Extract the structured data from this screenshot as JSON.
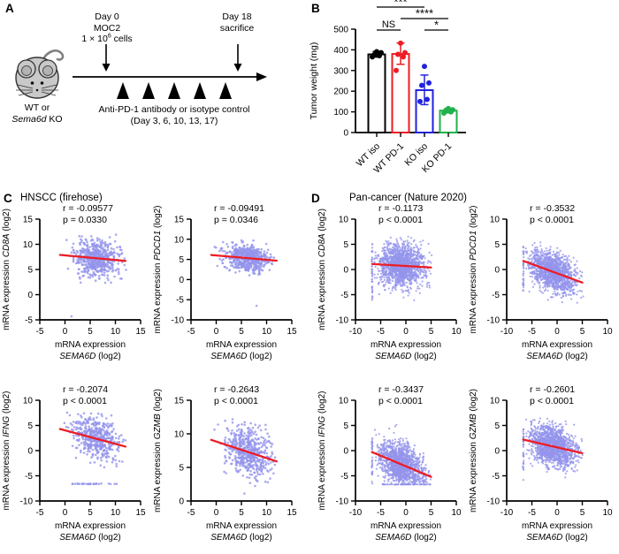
{
  "colors": {
    "point": "#9393ec",
    "trend": "#ed1c24",
    "axis": "#000000",
    "mouse_body": "#c9c9c9",
    "mouse_inner": "#b3b3b3"
  },
  "panel_labels": {
    "a": "A",
    "b": "B",
    "c": "C",
    "d": "D"
  },
  "panel_a": {
    "day0_line1": "Day 0",
    "day0_line2": "MOC2",
    "cells_pre": "1 × 10",
    "cells_sup": "6",
    "cells_post": " cells",
    "day18_line1": "Day 18",
    "day18_line2": "sacrifice",
    "genotype_line1": "WT or",
    "genotype_italic": "Sema6d",
    "genotype_post": " KO",
    "treatment_line1": "Anti-PD-1 antibody or isotype control",
    "treatment_line2": "(Day 3, 6, 10, 13, 17)"
  },
  "panel_c_title": "HNSCC (firehose)",
  "panel_d_title": "Pan-cancer (Nature 2020)",
  "chart_data": [
    {
      "id": "B",
      "type": "bar",
      "title": "",
      "ylabel": "Tumor weight (mg)",
      "ylim": [
        0,
        500
      ],
      "yticks": [
        0,
        100,
        200,
        300,
        400,
        500
      ],
      "categories": [
        "WT iso",
        "WT PD-1",
        "KO iso",
        "KO PD-1"
      ],
      "bar_colors": [
        "#000000",
        "#ed1c24",
        "#2222dd",
        "#22b14c"
      ],
      "means": [
        378,
        380,
        205,
        106
      ],
      "error_low": [
        365,
        330,
        135,
        95
      ],
      "error_high": [
        392,
        433,
        278,
        117
      ],
      "points": [
        [
          366,
          372,
          376,
          386,
          391
        ],
        [
          300,
          366,
          378,
          386,
          432
        ],
        [
          150,
          160,
          228,
          240,
          320
        ],
        [
          94,
          100,
          106,
          110,
          116
        ]
      ],
      "significance": [
        {
          "label": "***",
          "from": 0,
          "to": 2,
          "row": 0
        },
        {
          "label": "****",
          "from": 1,
          "to": 3,
          "row": 1
        },
        {
          "label": "NS",
          "from": 0,
          "to": 1,
          "row": 2
        },
        {
          "label": "*",
          "from": 2,
          "to": 3,
          "row": 2
        }
      ]
    },
    {
      "id": "C1",
      "panel": "C",
      "type": "scatter",
      "gene": "CD8A",
      "r_value": -0.09577,
      "p_text_value": "0.0330",
      "r_label": "r = -0.09577",
      "p_label": "p = 0.0330",
      "xlabel_line1": "mRNA expression",
      "xlabel_gene": "SEMA6D",
      "xlabel_suffix": " (log2)",
      "ylabel_prefix": "mRNA expression ",
      "ylabel_suffix": " (log2)",
      "xlim": [
        -5,
        15
      ],
      "xticks": [
        -5,
        0,
        5,
        10,
        15
      ],
      "ylim": [
        -5,
        15
      ],
      "yticks": [
        -5,
        0,
        5,
        10,
        15
      ],
      "trend": {
        "x1": -1,
        "y1": 7.9,
        "x2": 12,
        "y2": 6.7
      },
      "cluster": {
        "n": 560,
        "cx": 6.2,
        "sx": 2.2,
        "sy": 1.8,
        "xmin": -0.6,
        "xmax": 12.2,
        "ymin": 1.2,
        "ymax": 12.0
      },
      "extra_points": [
        [
          1.3,
          -4.3
        ]
      ],
      "seed": 11
    },
    {
      "id": "C2",
      "panel": "C",
      "type": "scatter",
      "gene": "PDCD1",
      "r_value": -0.09491,
      "p_text_value": "0.0346",
      "r_label": "r = -0.09491",
      "p_label": "p = 0.0346",
      "xlabel_line1": "mRNA expression",
      "xlabel_gene": "SEMA6D",
      "xlabel_suffix": " (log2)",
      "ylabel_prefix": "mRNA expression ",
      "ylabel_suffix": " (log2)",
      "xlim": [
        -5,
        15
      ],
      "xticks": [
        -5,
        0,
        5,
        10,
        15
      ],
      "ylim": [
        -10,
        15
      ],
      "yticks": [
        -10,
        -5,
        0,
        5,
        10,
        15
      ],
      "trend": {
        "x1": -1,
        "y1": 6.1,
        "x2": 12,
        "y2": 4.7
      },
      "cluster": {
        "n": 560,
        "cx": 6.2,
        "sx": 2.2,
        "sy": 1.6,
        "xmin": -0.6,
        "xmax": 12.2,
        "ymin": 0.4,
        "ymax": 9.8
      },
      "extra_points": [
        [
          8.0,
          -6.5
        ]
      ],
      "seed": 22
    },
    {
      "id": "C3",
      "panel": "C",
      "type": "scatter",
      "gene": "IFNG",
      "r_value": -0.2074,
      "p_text_value": "<0.0001",
      "r_label": "r = -0.2074",
      "p_label": "p < 0.0001",
      "xlabel_line1": "mRNA expression",
      "xlabel_gene": "SEMA6D",
      "xlabel_suffix": " (log2)",
      "ylabel_prefix": "mRNA expression ",
      "ylabel_suffix": " (log2)",
      "xlim": [
        -5,
        15
      ],
      "xticks": [
        -5,
        0,
        5,
        10,
        15
      ],
      "ylim": [
        -10,
        10
      ],
      "yticks": [
        -10,
        -5,
        0,
        5,
        10
      ],
      "trend": {
        "x1": -1,
        "y1": 4.3,
        "x2": 12,
        "y2": 0.8
      },
      "cluster": {
        "n": 500,
        "cx": 6.2,
        "sx": 2.3,
        "sy": 2.1,
        "xmin": -0.6,
        "xmax": 12.2,
        "ymin": -3.6,
        "ymax": 7.6
      },
      "row_stripe": {
        "y": -6.6,
        "xmin": 1.2,
        "xmax": 10.3,
        "n": 28
      },
      "extra_points": [],
      "seed": 33
    },
    {
      "id": "C4",
      "panel": "C",
      "type": "scatter",
      "gene": "GZMB",
      "r_value": -0.2643,
      "p_text_value": "<0.0001",
      "r_label": "r = -0.2643",
      "p_label": "p < 0.0001",
      "xlabel_line1": "mRNA expression",
      "xlabel_gene": "SEMA6D",
      "xlabel_suffix": " (log2)",
      "ylabel_prefix": "mRNA expression ",
      "ylabel_suffix": " (log2)",
      "xlim": [
        -5,
        15
      ],
      "xticks": [
        -5,
        0,
        5,
        10,
        15
      ],
      "ylim": [
        0,
        15
      ],
      "yticks": [
        0,
        5,
        10,
        15
      ],
      "trend": {
        "x1": -1,
        "y1": 9.1,
        "x2": 12,
        "y2": 5.9
      },
      "cluster": {
        "n": 520,
        "cx": 6.2,
        "sx": 2.3,
        "sy": 1.8,
        "xmin": -0.6,
        "xmax": 12.2,
        "ymin": 1.8,
        "ymax": 12.2
      },
      "extra_points": [
        [
          5.6,
          1.1
        ]
      ],
      "seed": 44
    },
    {
      "id": "D1",
      "panel": "D",
      "type": "scatter",
      "gene": "CD8A",
      "r_value": -0.1173,
      "p_text_value": "<0.0001",
      "r_label": "r = -0.1173",
      "p_label": "p < 0.0001",
      "xlabel_line1": "mRNA expression",
      "xlabel_gene": "SEMA6D",
      "xlabel_suffix": " (log2)",
      "ylabel_prefix": "mRNA expression ",
      "ylabel_suffix": " (log2)",
      "xlim": [
        -10,
        10
      ],
      "xticks": [
        -10,
        -5,
        0,
        5,
        10
      ],
      "ylim": [
        -10,
        10
      ],
      "yticks": [
        -10,
        -5,
        0,
        5,
        10
      ],
      "trend": {
        "x1": -6.7,
        "y1": 1.1,
        "x2": 5,
        "y2": 0.4
      },
      "cluster": {
        "n": 1400,
        "cx": -0.9,
        "sx": 2.4,
        "sy": 2.1,
        "xmin": -6.3,
        "xmax": 5.2,
        "ymin": -7.4,
        "ymax": 6.6
      },
      "col_stripe": {
        "x": -6.7,
        "ymin": -6.6,
        "ymax": 5.2,
        "n": 45
      },
      "extra_points": [],
      "seed": 55
    },
    {
      "id": "D2",
      "panel": "D",
      "type": "scatter",
      "gene": "PDCD1",
      "r_value": -0.3532,
      "p_text_value": "<0.0001",
      "r_label": "r = -0.3532",
      "p_label": "p < 0.0001",
      "xlabel_line1": "mRNA expression",
      "xlabel_gene": "SEMA6D",
      "xlabel_suffix": " (log2)",
      "ylabel_prefix": "mRNA expression ",
      "ylabel_suffix": " (log2)",
      "xlim": [
        -10,
        10
      ],
      "xticks": [
        -10,
        -5,
        0,
        5,
        10
      ],
      "ylim": [
        -10,
        10
      ],
      "yticks": [
        -10,
        -5,
        0,
        5,
        10
      ],
      "trend": {
        "x1": -6.7,
        "y1": 1.7,
        "x2": 5,
        "y2": -2.6
      },
      "cluster": {
        "n": 1400,
        "cx": -0.9,
        "sx": 2.3,
        "sy": 1.9,
        "xmin": -6.3,
        "xmax": 5.2,
        "ymin": -6.6,
        "ymax": 5.9
      },
      "col_stripe": {
        "x": -6.7,
        "ymin": -4.4,
        "ymax": 4.6,
        "n": 40
      },
      "extra_points": [],
      "seed": 66
    },
    {
      "id": "D3",
      "panel": "D",
      "type": "scatter",
      "gene": "IFNG",
      "r_value": -0.3437,
      "p_text_value": "<0.0001",
      "r_label": "r = -0.3437",
      "p_label": "p < 0.0001",
      "xlabel_line1": "mRNA expression",
      "xlabel_gene": "SEMA6D",
      "xlabel_suffix": " (log2)",
      "ylabel_prefix": "mRNA expression ",
      "ylabel_suffix": " (log2)",
      "xlim": [
        -10,
        10
      ],
      "xticks": [
        -10,
        -5,
        0,
        5,
        10
      ],
      "ylim": [
        -10,
        10
      ],
      "yticks": [
        -10,
        -5,
        0,
        5,
        10
      ],
      "trend": {
        "x1": -6.7,
        "y1": -0.3,
        "x2": 5,
        "y2": -5.2
      },
      "cluster": {
        "n": 1300,
        "cx": -0.9,
        "sx": 2.3,
        "sy": 2.1,
        "xmin": -6.3,
        "xmax": 5.2,
        "ymin": -6.5,
        "ymax": 6.4
      },
      "col_stripe": {
        "x": -6.7,
        "ymin": -6.6,
        "ymax": 2.6,
        "n": 40
      },
      "row_stripe": {
        "y": -6.7,
        "xmin": -4.6,
        "xmax": 5.0,
        "n": 70
      },
      "extra_points": [],
      "seed": 77
    },
    {
      "id": "D4",
      "panel": "D",
      "type": "scatter",
      "gene": "GZMB",
      "r_value": -0.2601,
      "p_text_value": "<0.0001",
      "r_label": "r = -0.2601",
      "p_label": "p < 0.0001",
      "xlabel_line1": "mRNA expression",
      "xlabel_gene": "SEMA6D",
      "xlabel_suffix": " (log2)",
      "ylabel_prefix": "mRNA expression ",
      "ylabel_suffix": " (log2)",
      "xlim": [
        -10,
        10
      ],
      "xticks": [
        -10,
        -5,
        0,
        5,
        10
      ],
      "ylim": [
        -10,
        10
      ],
      "yticks": [
        -10,
        -5,
        0,
        5,
        10
      ],
      "trend": {
        "x1": -6.7,
        "y1": 2.2,
        "x2": 5,
        "y2": -0.5
      },
      "cluster": {
        "n": 1400,
        "cx": -0.9,
        "sx": 2.3,
        "sy": 1.9,
        "xmin": -6.3,
        "xmax": 5.2,
        "ymin": -6.4,
        "ymax": 6.6
      },
      "col_stripe": {
        "x": -6.7,
        "ymin": -4.6,
        "ymax": 4.5,
        "n": 40
      },
      "extra_points": [
        [
          -6.7,
          -5.8
        ]
      ],
      "seed": 88
    }
  ]
}
